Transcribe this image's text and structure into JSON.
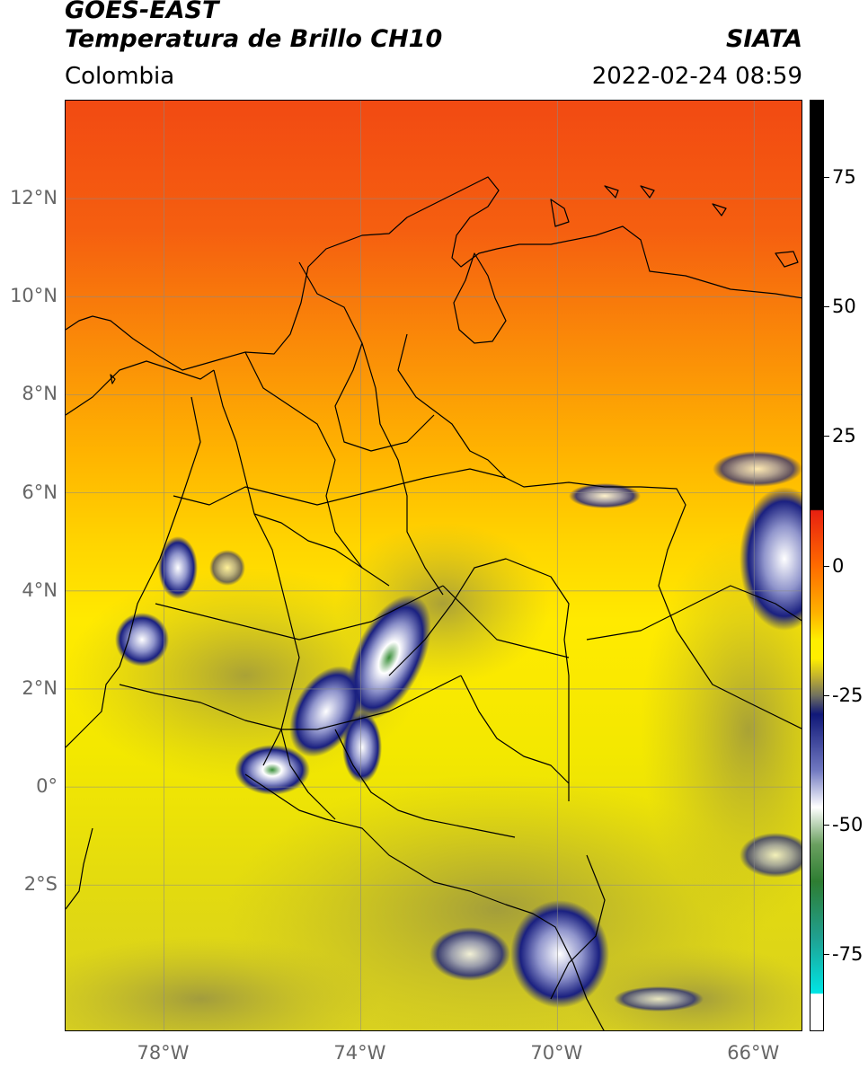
{
  "header": {
    "title_line1": "GOES-EAST",
    "title_line2": "Temperatura de Brillo CH10",
    "org": "SIATA",
    "region": "Colombia",
    "timestamp": "2022-02-24 08:59"
  },
  "map": {
    "lat_labels": [
      {
        "label": "12°N",
        "lat": 12
      },
      {
        "label": "10°N",
        "lat": 10
      },
      {
        "label": "8°N",
        "lat": 8
      },
      {
        "label": "6°N",
        "lat": 6
      },
      {
        "label": "4°N",
        "lat": 4
      },
      {
        "label": "2°N",
        "lat": 2
      },
      {
        "label": "0°",
        "lat": 0
      },
      {
        "label": "2°S",
        "lat": -2
      }
    ],
    "lon_labels": [
      {
        "label": "78°W",
        "lon": -78
      },
      {
        "label": "74°W",
        "lon": -74
      },
      {
        "label": "70°W",
        "lon": -70
      },
      {
        "label": "66°W",
        "lon": -66
      }
    ],
    "extent": {
      "lon_min": -80,
      "lon_max": -65,
      "lat_min": -5,
      "lat_max": 14
    }
  },
  "colorbar": {
    "ticks": [
      {
        "label": "75",
        "value": 75
      },
      {
        "label": "50",
        "value": 50
      },
      {
        "label": "25",
        "value": 25
      },
      {
        "label": "0",
        "value": 0
      },
      {
        "label": "-25",
        "value": -25
      },
      {
        "label": "-50",
        "value": -50
      },
      {
        "label": "-75",
        "value": -75
      }
    ],
    "range": [
      -90,
      90
    ]
  },
  "colors": {
    "warm": "#f03a10",
    "mid": "#ffb000",
    "yellow": "#ffee00",
    "olive": "#b8b030",
    "navy": "#141c78",
    "white": "#ffffff",
    "green": "#2e7d32",
    "cyan": "#00e5e5",
    "black": "#000000"
  }
}
